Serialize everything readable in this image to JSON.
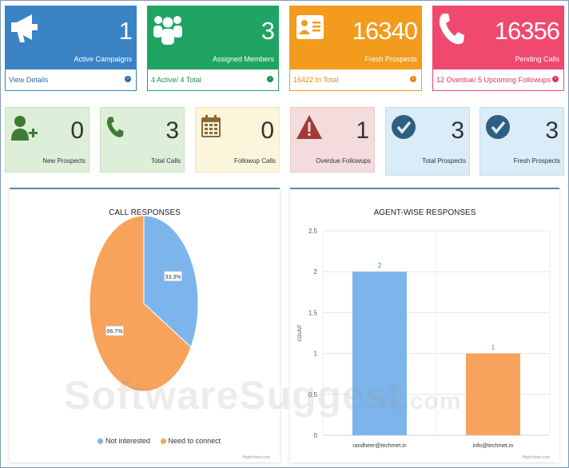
{
  "top_cards": [
    {
      "value": "1",
      "label": "Active Campaigns",
      "footer": "View Details",
      "bg": "#3a83c4",
      "footer_color": "#2e6da4",
      "icon": "megaphone-icon"
    },
    {
      "value": "3",
      "label": "Assigned Members",
      "footer": "4 Active/ 4 Total",
      "bg": "#1fa463",
      "footer_color": "#1b8d55",
      "icon": "group-icon"
    },
    {
      "value": "16340",
      "label": "Fresh Prospects",
      "footer": "16422 In Total",
      "bg": "#f29b1c",
      "footer_color": "#e38a10",
      "icon": "contact-card-icon"
    },
    {
      "value": "16356",
      "label": "Pending Calls",
      "footer": "12 Overdue/ 5 Upcoming Followups",
      "bg": "#f0496f",
      "footer_color": "#e0335a",
      "icon": "phone-icon"
    }
  ],
  "small_cards": [
    {
      "value": "0",
      "label": "New Prospects",
      "bg": "#ddefd9",
      "icon": "add-user-icon",
      "icon_color": "#3e7b34"
    },
    {
      "value": "3",
      "label": "Total Calls",
      "bg": "#ddefd9",
      "icon": "phone-icon",
      "icon_color": "#3e7b34"
    },
    {
      "value": "0",
      "label": "Followup Calls",
      "bg": "#fbf5dc",
      "icon": "calendar-icon",
      "icon_color": "#8b6a35"
    },
    {
      "value": "1",
      "label": "Overdue Followups",
      "bg": "#f4dcdc",
      "icon": "warning-icon",
      "icon_color": "#a33a36"
    },
    {
      "value": "3",
      "label": "Total Prospects",
      "bg": "#d9ecf7",
      "icon": "check-circle-icon",
      "icon_color": "#2e5f7f"
    },
    {
      "value": "3",
      "label": "Fresh Prospects",
      "bg": "#d9ecf7",
      "icon": "check-circle-icon",
      "icon_color": "#2e5f7f"
    }
  ],
  "call_responses": {
    "title": "CALL RESPONSES",
    "credit": "Highcharts.com",
    "chart_data": {
      "type": "pie",
      "title": "CALL RESPONSES",
      "slices": [
        {
          "name": "Not interested",
          "value": 33.3,
          "label": "33.3%",
          "color": "#7cb5ec"
        },
        {
          "name": "Need to connect",
          "value": 66.7,
          "label": "66.7%",
          "color": "#f7a35c"
        }
      ],
      "legend_position": "bottom"
    }
  },
  "agent_responses": {
    "title": "AGENT-WISE RESPONSES",
    "credit": "Highcharts.com",
    "chart_data": {
      "type": "bar",
      "title": "AGENT-WISE RESPONSES",
      "ylabel": "COUNT",
      "categories": [
        "randheer@techmet.in",
        "info@techmet.in"
      ],
      "values": [
        2,
        1
      ],
      "colors": [
        "#7cb5ec",
        "#f7a35c"
      ],
      "ylim": [
        0,
        2.5
      ],
      "yticks": [
        "0",
        "0.5",
        "1",
        "1.5",
        "2",
        "2.5"
      ],
      "grid": true
    }
  },
  "watermark": {
    "main": "SoftwareSuggest",
    "tld": ".com"
  }
}
